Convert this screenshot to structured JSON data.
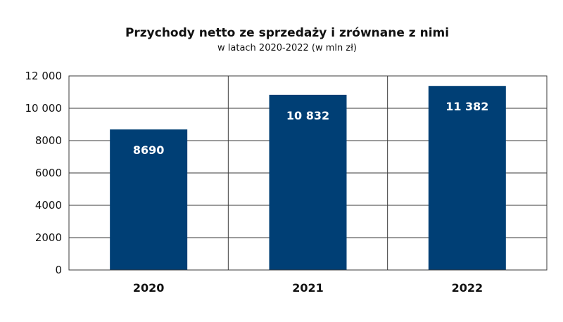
{
  "chart_data": {
    "type": "bar",
    "title": "Przychody netto ze sprzedaży i zrównane z nimi",
    "subtitle": "w latach 2020-2022 (w mln zł)",
    "categories": [
      "2020",
      "2021",
      "2022"
    ],
    "values": [
      8690,
      10832,
      11382
    ],
    "data_labels": [
      "8690",
      "10 832",
      "11 382"
    ],
    "yticks": [
      0,
      2000,
      4000,
      6000,
      8000,
      10000,
      12000
    ],
    "ytick_labels": [
      "0",
      "2000",
      "4000",
      "6000",
      "8000",
      "10 000",
      "12 000"
    ],
    "ylim": [
      0,
      12000
    ],
    "xlabel": "",
    "ylabel": "",
    "grid": true,
    "bar_color": "#003f75",
    "grid_color": "#3a3a3a"
  }
}
